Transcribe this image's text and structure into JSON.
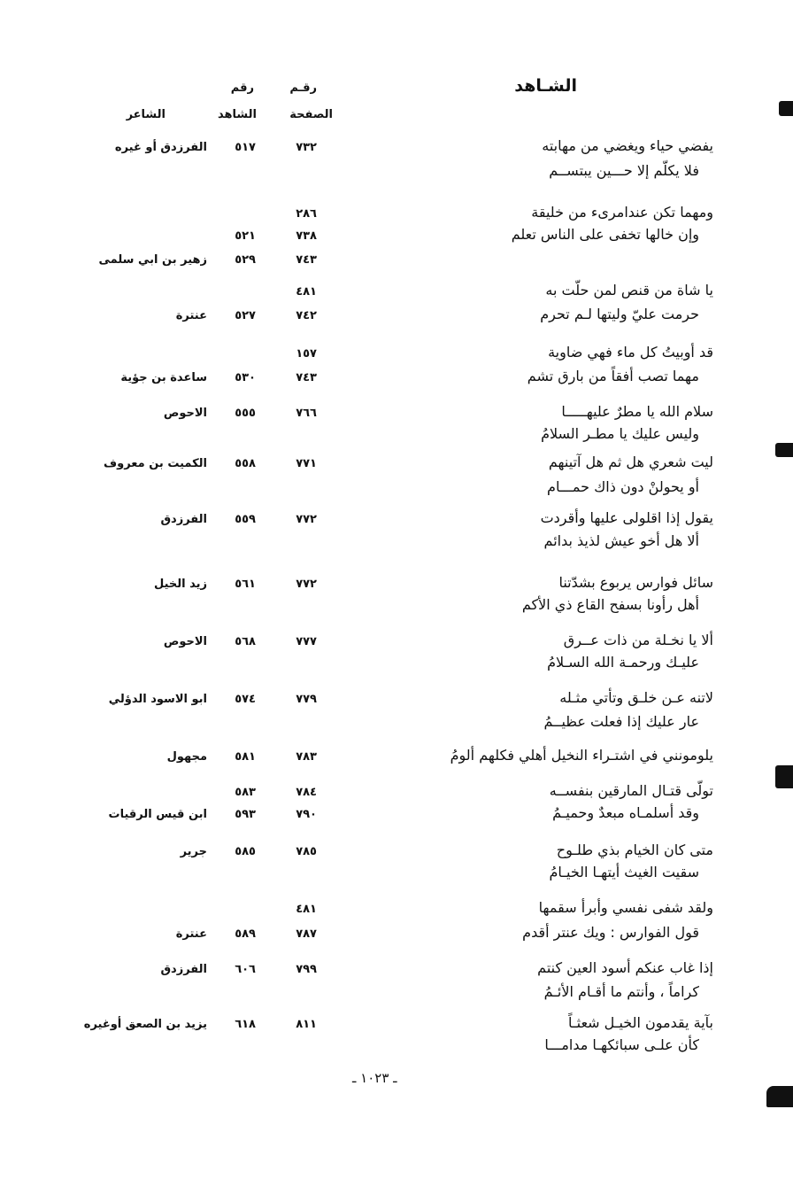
{
  "header": {
    "title": "الشـاهد",
    "col_page_top": "رقـم",
    "col_page_bottom": "الصفحة",
    "col_num_top": "رقم",
    "col_num_bottom": "الشاهد",
    "col_poet": "الشاعر"
  },
  "entries": [
    {
      "lines": [
        {
          "verse": "يفضي حياء ويغضي من مهابته",
          "page": "٧٣٢",
          "shahid": "٥١٧",
          "poet": "الفرزدق أو غيره"
        },
        {
          "verse": "فلا يكلّم إلا حـــين يبتســم",
          "page": "",
          "shahid": "",
          "poet": ""
        }
      ]
    },
    {
      "lines": [
        {
          "verse": "ومهما تكن عندامرىء من خليقة",
          "page": "٢٨٦",
          "shahid": "",
          "poet": ""
        },
        {
          "verse": "وإن خالها تخفى على الناس تعلم",
          "page": "٧٣٨",
          "shahid": "٥٢١",
          "poet": ""
        },
        {
          "verse": "",
          "page": "٧٤٣",
          "shahid": "٥٢٩",
          "poet": "زهير بن ابي سلمى"
        }
      ]
    },
    {
      "lines": [
        {
          "verse": "يا شاة من قنص لمن حلّت به",
          "page": "٤٨١",
          "shahid": "",
          "poet": ""
        },
        {
          "verse": "حرمت عليّ وليتها لـم تحرم",
          "page": "٧٤٢",
          "shahid": "٥٢٧",
          "poet": "عنترة"
        }
      ]
    },
    {
      "lines": [
        {
          "verse": "قد أوبيتُ كل ماء فهي ضاوية",
          "page": "١٥٧",
          "shahid": "",
          "poet": ""
        },
        {
          "verse": "مهما تصب أفقاً من بارق تشم",
          "page": "٧٤٣",
          "shahid": "٥٣٠",
          "poet": "ساعدة بن جؤية"
        }
      ]
    },
    {
      "lines": [
        {
          "verse": "سلام الله يا مطرٌ عليهـــــا",
          "page": "٧٦٦",
          "shahid": "٥٥٥",
          "poet": "الاحوص"
        },
        {
          "verse": "وليس عليك يا مطـر السلامُ",
          "page": "",
          "shahid": "",
          "poet": ""
        }
      ]
    },
    {
      "lines": [
        {
          "verse": "ليت شعري هل ثم هل آتينهم",
          "page": "٧٧١",
          "shahid": "٥٥٨",
          "poet": "الكميت بن معروف"
        },
        {
          "verse": "أو يحولنْ دون ذاك حمـــام",
          "page": "",
          "shahid": "",
          "poet": ""
        }
      ]
    },
    {
      "lines": [
        {
          "verse": "يقول إذا اقلولى عليها وأقردت",
          "page": "٧٧٢",
          "shahid": "٥٥٩",
          "poet": "الفرزدق"
        },
        {
          "verse": "ألا هل أخو عيش لذيذ بدائم",
          "page": "",
          "shahid": "",
          "poet": ""
        }
      ]
    },
    {
      "lines": [
        {
          "verse": "سائل فوارس يربوع بشدّتنا",
          "page": "٧٧٢",
          "shahid": "٥٦١",
          "poet": "زيد الخيل"
        },
        {
          "verse": "أهل رأونا بسفح القاع ذي الأكم",
          "page": "",
          "shahid": "",
          "poet": ""
        }
      ]
    },
    {
      "lines": [
        {
          "verse": "ألا يا نخـلة من ذات عــرق",
          "page": "٧٧٧",
          "shahid": "٥٦٨",
          "poet": "الاحوص"
        },
        {
          "verse": "عليـك ورحمـة الله السـلامُ",
          "page": "",
          "shahid": "",
          "poet": ""
        }
      ]
    },
    {
      "lines": [
        {
          "verse": "لاتنه عـن خلـق وتأتي مثـله",
          "page": "٧٧٩",
          "shahid": "٥٧٤",
          "poet": "ابو الاسود الدؤلي"
        },
        {
          "verse": "عار عليك إذا فعلت عظيــمُ",
          "page": "",
          "shahid": "",
          "poet": ""
        }
      ]
    },
    {
      "lines": [
        {
          "verse": "يلومونني في اشتـراء النخيل أهلي فكلهم ألومُ",
          "page": "٧٨٣",
          "shahid": "٥٨١",
          "poet": "مجهول"
        }
      ]
    },
    {
      "lines": [
        {
          "verse": "تولّى قتـال المارقين بنفســه",
          "page": "٧٨٤",
          "shahid": "٥٨٣",
          "poet": ""
        },
        {
          "verse": "وقد أسلمـاه مبعدٌ وحميـمُ",
          "page": "٧٩٠",
          "shahid": "٥٩٣",
          "poet": "ابن قيس الرقيات"
        }
      ]
    },
    {
      "lines": [
        {
          "verse": "متى كان الخيام بذي طلـوح",
          "page": "٧٨٥",
          "shahid": "٥٨٥",
          "poet": "جرير"
        },
        {
          "verse": "سقيت الغيث أيتهـا الخيـامُ",
          "page": "",
          "shahid": "",
          "poet": ""
        }
      ]
    },
    {
      "lines": [
        {
          "verse": "ولقد شفى نفسي وأبرأ سقمها",
          "page": "٤٨١",
          "shahid": "",
          "poet": ""
        },
        {
          "verse": "قول الفوارس : ويك عنتر أقدم",
          "page": "٧٨٧",
          "shahid": "٥٨٩",
          "poet": "عنترة"
        }
      ]
    },
    {
      "lines": [
        {
          "verse": "إذا غاب عنكم أسود العين كنتم",
          "page": "٧٩٩",
          "shahid": "٦٠٦",
          "poet": "الفرزدق"
        },
        {
          "verse": "كراماً ، وأنتم ما أقـام الأئـمُ",
          "page": "",
          "shahid": "",
          "poet": ""
        }
      ]
    },
    {
      "lines": [
        {
          "verse": "بآية يقدمون الخيـل شعثـاً",
          "page": "٨١١",
          "shahid": "٦١٨",
          "poet": "يزيد بن الصعق أوغيره"
        },
        {
          "verse": "كأن علـى سبائكهـا مدامـــا",
          "page": "",
          "shahid": "",
          "poet": ""
        }
      ]
    }
  ],
  "footer": {
    "page_number": "ـ ١٠٢٣ ـ"
  }
}
